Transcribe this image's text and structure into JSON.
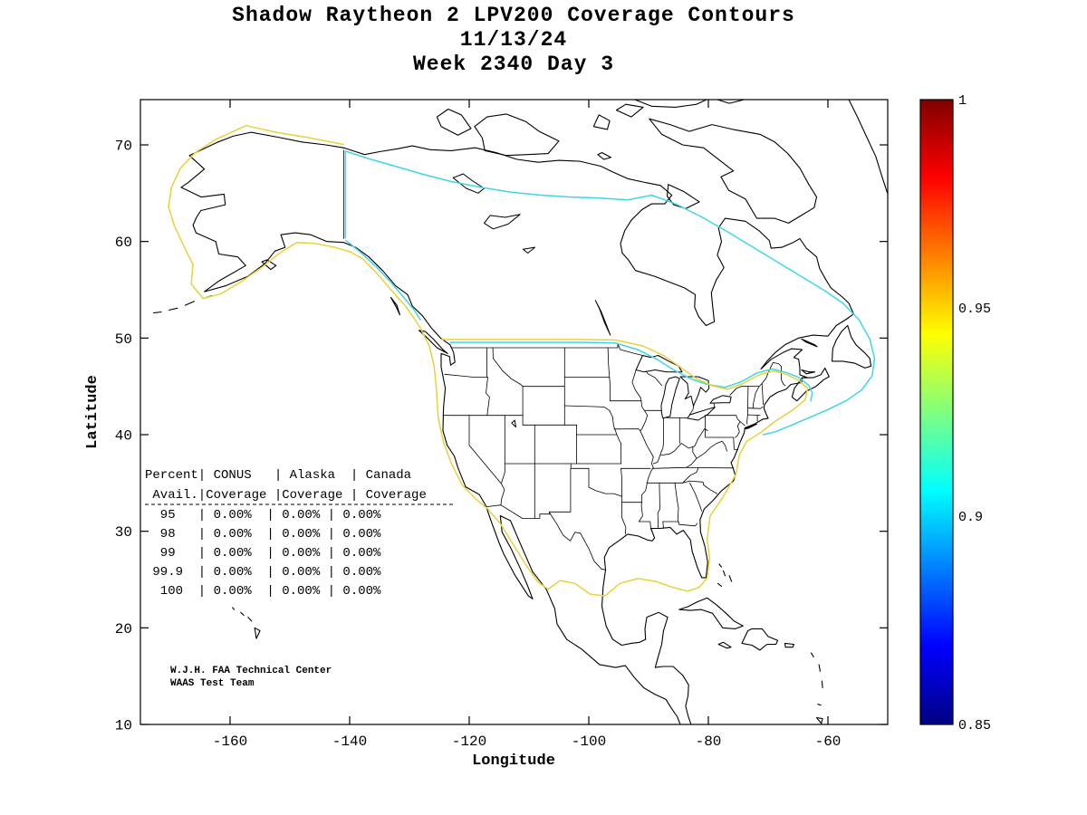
{
  "title": {
    "line1": "Shadow Raytheon 2 LPV200 Coverage Contours",
    "line2": "11/13/24",
    "line3": "Week 2340 Day 3"
  },
  "axes": {
    "xlabel": "Longitude",
    "ylabel": "Latitude",
    "x_ticks": [
      -160,
      -140,
      -120,
      -100,
      -80,
      -60
    ],
    "y_ticks": [
      10,
      20,
      30,
      40,
      50,
      60,
      70
    ]
  },
  "colorbar": {
    "min": 0.85,
    "max": 1,
    "ticks": [
      {
        "value": 1,
        "label": "1"
      },
      {
        "value": 0.95,
        "label": "0.95"
      },
      {
        "value": 0.9,
        "label": "0.9"
      },
      {
        "value": 0.85,
        "label": "0.85"
      }
    ]
  },
  "annotation": {
    "line1": "W.J.H. FAA Technical Center",
    "line2": "WAAS Test Team"
  },
  "colors": {
    "contour_95": "#e6d23c",
    "contour_90": "#3ed6e6",
    "coast": "#000000",
    "background": "#ffffff"
  },
  "chart_data": {
    "type": "heatmap",
    "title": "Shadow Raytheon 2 LPV200 Coverage Contours",
    "subtitle": [
      "11/13/24",
      "Week 2340 Day 3"
    ],
    "xlabel": "Longitude",
    "ylabel": "Latitude",
    "xlim": [
      -175,
      -50
    ],
    "ylim": [
      10,
      74.7
    ],
    "grid": false,
    "colorbar_range": [
      0.85,
      1
    ],
    "colorbar_tick_values": [
      0.85,
      0.9,
      0.95,
      1
    ],
    "contour_levels_shown": [
      0.9,
      0.95
    ],
    "coverage_table": {
      "header_line1": "Percent| CONUS   | Alaska  | Canada",
      "header_line2": " Avail.|Coverage |Coverage | Coverage",
      "columns": [
        "Percent Avail.",
        "CONUS Coverage",
        "Alaska Coverage",
        "Canada Coverage"
      ],
      "rows": [
        {
          "percent": "95",
          "conus": "0.00%",
          "alaska": "0.00%",
          "canada": "0.00%"
        },
        {
          "percent": "98",
          "conus": "0.00%",
          "alaska": "0.00%",
          "canada": "0.00%"
        },
        {
          "percent": "99",
          "conus": "0.00%",
          "alaska": "0.00%",
          "canada": "0.00%"
        },
        {
          "percent": "99.9",
          "conus": "0.00%",
          "alaska": "0.00%",
          "canada": "0.00%"
        },
        {
          "percent": "100",
          "conus": "0.00%",
          "alaska": "0.00%",
          "canada": "0.00%"
        }
      ]
    }
  }
}
